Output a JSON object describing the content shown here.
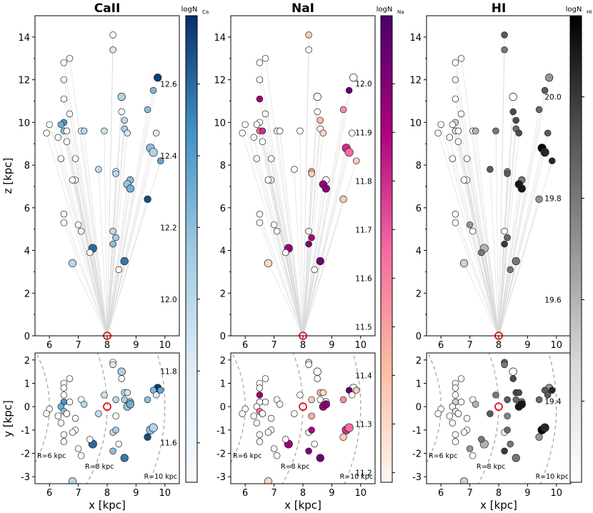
{
  "chart_data": {
    "type": "scatter",
    "figure_description_labels": {
      "xlabel": "x [kpc]",
      "top_ylabel": "z [kpc]",
      "bottom_ylabel": "y [kpc]"
    },
    "axes": {
      "top_x_ticks": [
        6,
        7,
        8,
        9,
        10
      ],
      "top_y_ticks": [
        0,
        2,
        4,
        6,
        8,
        10,
        12,
        14
      ],
      "bottom_x_ticks": [
        6,
        7,
        8,
        9,
        10
      ],
      "bottom_y_ticks": [
        -3,
        -2,
        -1,
        0,
        1,
        2
      ],
      "top_xlim": [
        5.5,
        10.5
      ],
      "top_ylim": [
        0,
        15
      ],
      "bottom_xlim": [
        5.5,
        10.5
      ],
      "bottom_ylim": [
        -3.3,
        2.3
      ]
    },
    "ring_labels": [
      "R=6 kpc",
      "R=8 kpc",
      "R=10 kpc"
    ],
    "sun": {
      "x": 8.0,
      "y": 0.0,
      "z": 0.0
    },
    "panels": [
      {
        "title": "CaII",
        "colorbar_label": "logN",
        "colorbar_sub": "Ca",
        "colorscale": [
          "#f7fbff",
          "#deebf7",
          "#9ecae1",
          "#4292c6",
          "#08306b"
        ],
        "clim": [
          11.49,
          12.79
        ],
        "colorbar_ticks": [
          "11.6",
          "11.8",
          "12.0",
          "12.2",
          "12.4",
          "12.6"
        ],
        "colorbar_tick_values": [
          11.6,
          11.8,
          12.0,
          12.2,
          12.4,
          12.6
        ]
      },
      {
        "title": "NaI",
        "colorbar_label": "logN",
        "colorbar_sub": "Na",
        "colorscale": [
          "#fff5f0",
          "#fcbba1",
          "#f768a1",
          "#ae017e",
          "#49006a"
        ],
        "clim": [
          11.18,
          12.14
        ],
        "colorbar_ticks": [
          "11.2",
          "11.3",
          "11.4",
          "11.5",
          "11.6",
          "11.7",
          "11.8",
          "11.9",
          "12.0"
        ],
        "colorbar_tick_values": [
          11.2,
          11.3,
          11.4,
          11.5,
          11.6,
          11.7,
          11.8,
          11.9,
          12.0
        ]
      },
      {
        "title": "HI",
        "colorbar_label": "logN",
        "colorbar_sub": "HI",
        "colorscale": [
          "#ffffff",
          "#d9d9d9",
          "#969696",
          "#525252",
          "#000000"
        ],
        "clim": [
          19.24,
          20.16
        ],
        "colorbar_ticks": [
          "19.4",
          "19.6",
          "19.8",
          "20.0"
        ],
        "colorbar_tick_values": [
          19.4,
          19.6,
          19.8,
          20.0
        ]
      }
    ],
    "sightlines": [
      {
        "x": 8.2,
        "y": 1.9,
        "z": 14.1,
        "ca": null,
        "na": 11.35,
        "hi": 19.9,
        "size": 1
      },
      {
        "x": 8.2,
        "y": 1.8,
        "z": 13.4,
        "ca": 11.85,
        "na": null,
        "hi": 19.8,
        "size": 1
      },
      {
        "x": 6.7,
        "y": 1.2,
        "z": 13.0,
        "ca": null,
        "na": null,
        "hi": null,
        "size": 1
      },
      {
        "x": 6.5,
        "y": 1.0,
        "z": 12.8,
        "ca": null,
        "na": null,
        "hi": null,
        "size": 1
      },
      {
        "x": 6.5,
        "y": 0.8,
        "z": 12.0,
        "ca": null,
        "na": null,
        "hi": null,
        "size": 1
      },
      {
        "x": 9.75,
        "y": 0.8,
        "z": 12.1,
        "ca": 12.75,
        "na": null,
        "hi": 19.7,
        "size": 1.2
      },
      {
        "x": 9.6,
        "y": 0.7,
        "z": 11.5,
        "ca": 12.25,
        "na": 12.08,
        "hi": 19.9,
        "size": 1
      },
      {
        "x": 8.5,
        "y": 1.5,
        "z": 11.2,
        "ca": 12.05,
        "na": null,
        "hi": null,
        "size": 1.2
      },
      {
        "x": 6.5,
        "y": 0.5,
        "z": 11.1,
        "ca": null,
        "na": 11.95,
        "hi": null,
        "size": 1
      },
      {
        "x": 9.4,
        "y": 0.3,
        "z": 10.6,
        "ca": 12.2,
        "na": 11.55,
        "hi": 19.85,
        "size": 1
      },
      {
        "x": 8.5,
        "y": 1.2,
        "z": 10.5,
        "ca": null,
        "na": null,
        "hi": 19.95,
        "size": 1
      },
      {
        "x": 6.7,
        "y": 0.2,
        "z": 10.4,
        "ca": null,
        "na": null,
        "hi": null,
        "size": 1
      },
      {
        "x": 8.6,
        "y": 0.6,
        "z": 10.1,
        "ca": 12.0,
        "na": 11.4,
        "hi": 19.95,
        "size": 1
      },
      {
        "x": 6.5,
        "y": 0.2,
        "z": 10.0,
        "ca": 12.45,
        "na": null,
        "hi": 19.5,
        "size": 1
      },
      {
        "x": 6.4,
        "y": 0.0,
        "z": 9.9,
        "ca": 12.3,
        "na": null,
        "hi": null,
        "size": 1
      },
      {
        "x": 6.0,
        "y": -0.1,
        "z": 9.9,
        "ca": null,
        "na": null,
        "hi": null,
        "size": 1
      },
      {
        "x": 8.6,
        "y": 0.3,
        "z": 9.7,
        "ca": 12.1,
        "na": null,
        "hi": 19.85,
        "size": 1
      },
      {
        "x": 7.1,
        "y": 0.3,
        "z": 9.6,
        "ca": null,
        "na": null,
        "hi": null,
        "size": 1
      },
      {
        "x": 6.5,
        "y": -0.2,
        "z": 9.6,
        "ca": 12.2,
        "na": 11.65,
        "hi": 19.4,
        "size": 1
      },
      {
        "x": 6.6,
        "y": -0.3,
        "z": 9.6,
        "ca": null,
        "na": 11.8,
        "hi": null,
        "size": 1
      },
      {
        "x": 7.2,
        "y": 0.1,
        "z": 9.6,
        "ca": 12.0,
        "na": null,
        "hi": 19.6,
        "size": 1
      },
      {
        "x": 7.9,
        "y": 0.5,
        "z": 9.6,
        "ca": 11.9,
        "na": null,
        "hi": 19.8,
        "size": 1
      },
      {
        "x": 8.7,
        "y": 0.6,
        "z": 9.5,
        "ca": 11.85,
        "na": 11.3,
        "hi": 19.95,
        "size": 1
      },
      {
        "x": 9.7,
        "y": 0.5,
        "z": 9.5,
        "ca": 11.8,
        "na": null,
        "hi": 19.9,
        "size": 1
      },
      {
        "x": 5.9,
        "y": -0.3,
        "z": 9.5,
        "ca": null,
        "na": null,
        "hi": null,
        "size": 1
      },
      {
        "x": 6.3,
        "y": -0.4,
        "z": 9.3,
        "ca": null,
        "na": null,
        "hi": null,
        "size": 1
      },
      {
        "x": 6.6,
        "y": -0.3,
        "z": 9.1,
        "ca": null,
        "na": null,
        "hi": null,
        "size": 1
      },
      {
        "x": 9.5,
        "y": -1.0,
        "z": 8.8,
        "ca": 12.2,
        "na": 11.8,
        "hi": 20.15,
        "size": 1.3
      },
      {
        "x": 9.6,
        "y": -0.9,
        "z": 8.6,
        "ca": 12.05,
        "na": 11.65,
        "hi": 20.05,
        "size": 1.3
      },
      {
        "x": 6.4,
        "y": -0.7,
        "z": 8.3,
        "ca": null,
        "na": null,
        "hi": null,
        "size": 1
      },
      {
        "x": 6.9,
        "y": -0.5,
        "z": 8.3,
        "ca": null,
        "na": null,
        "hi": null,
        "size": 1
      },
      {
        "x": 9.85,
        "y": 0.7,
        "z": 8.2,
        "ca": 12.35,
        "na": 11.35,
        "hi": 20.05,
        "size": 1
      },
      {
        "x": 7.7,
        "y": -0.3,
        "z": 7.8,
        "ca": 11.95,
        "na": null,
        "hi": 19.9,
        "size": 1
      },
      {
        "x": 8.3,
        "y": -0.4,
        "z": 7.7,
        "ca": null,
        "na": 11.45,
        "hi": 19.75,
        "size": 1
      },
      {
        "x": 8.3,
        "y": 0.3,
        "z": 7.6,
        "ca": 12.0,
        "na": 11.35,
        "hi": 19.9,
        "size": 1
      },
      {
        "x": 8.8,
        "y": 0.2,
        "z": 7.3,
        "ca": 12.2,
        "na": null,
        "hi": 19.8,
        "size": 1.1
      },
      {
        "x": 6.9,
        "y": -1.0,
        "z": 7.3,
        "ca": null,
        "na": null,
        "hi": null,
        "size": 1
      },
      {
        "x": 6.8,
        "y": -1.1,
        "z": 7.3,
        "ca": null,
        "na": null,
        "hi": null,
        "size": 1
      },
      {
        "x": 8.7,
        "y": 0.0,
        "z": 7.1,
        "ca": 12.15,
        "na": 11.95,
        "hi": 20.1,
        "size": 1.2
      },
      {
        "x": 8.8,
        "y": 0.1,
        "z": 6.9,
        "ca": 12.3,
        "na": 12.0,
        "hi": 20.1,
        "size": 1.2
      },
      {
        "x": 9.4,
        "y": -1.3,
        "z": 6.4,
        "ca": 12.7,
        "na": 11.35,
        "hi": 19.7,
        "size": 1.1
      },
      {
        "x": 6.5,
        "y": -1.2,
        "z": 5.7,
        "ca": null,
        "na": null,
        "hi": null,
        "size": 1
      },
      {
        "x": 6.5,
        "y": -1.5,
        "z": 5.3,
        "ca": null,
        "na": null,
        "hi": null,
        "size": 1
      },
      {
        "x": 7.0,
        "y": -1.8,
        "z": 5.2,
        "ca": null,
        "na": null,
        "hi": 19.7,
        "size": 1
      },
      {
        "x": 7.1,
        "y": -2.1,
        "z": 4.9,
        "ca": null,
        "na": null,
        "hi": null,
        "size": 1
      },
      {
        "x": 8.2,
        "y": -1.1,
        "z": 4.9,
        "ca": 11.95,
        "na": null,
        "hi": null,
        "size": 1
      },
      {
        "x": 8.3,
        "y": -1.0,
        "z": 4.6,
        "ca": 12.1,
        "na": 11.9,
        "hi": 19.85,
        "size": 1
      },
      {
        "x": 8.2,
        "y": -1.9,
        "z": 4.3,
        "ca": 12.2,
        "na": 12.0,
        "hi": 20.0,
        "size": 1
      },
      {
        "x": 7.5,
        "y": -1.6,
        "z": 4.1,
        "ca": 12.6,
        "na": 11.95,
        "hi": 19.6,
        "size": 1.3
      },
      {
        "x": 7.4,
        "y": -1.4,
        "z": 3.9,
        "ca": null,
        "na": null,
        "hi": 19.8,
        "size": 1
      },
      {
        "x": 6.8,
        "y": -3.2,
        "z": 3.4,
        "ca": 12.0,
        "na": 11.3,
        "hi": 19.5,
        "size": 1.2
      },
      {
        "x": 8.6,
        "y": -2.2,
        "z": 3.5,
        "ca": 12.55,
        "na": 12.05,
        "hi": 19.8,
        "size": 1.2
      },
      {
        "x": 8.4,
        "y": -1.6,
        "z": 3.1,
        "ca": null,
        "na": null,
        "hi": 19.8,
        "size": 1
      }
    ]
  }
}
